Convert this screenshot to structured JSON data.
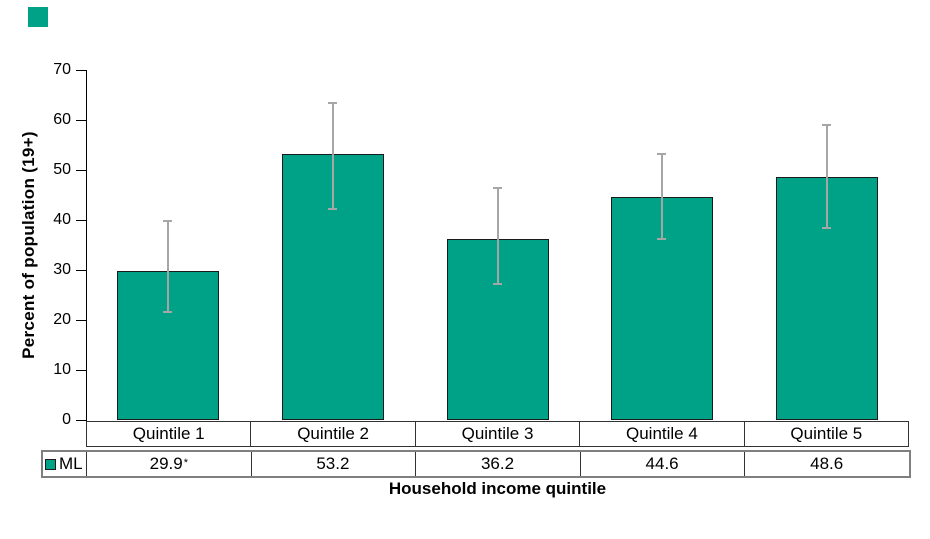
{
  "chart_data": {
    "type": "bar",
    "title": "",
    "categories": [
      "Quintile 1",
      "Quintile 2",
      "Quintile 3",
      "Quintile 4",
      "Quintile 5"
    ],
    "series": [
      {
        "name": "ML",
        "values": [
          29.9,
          53.2,
          36.2,
          44.6,
          48.6
        ],
        "error_low": [
          21.6,
          42.3,
          27.3,
          36.3,
          38.4
        ],
        "error_high": [
          39.8,
          63.5,
          46.4,
          53.2,
          59.1
        ],
        "flags": [
          "*",
          "",
          "",
          "",
          ""
        ]
      }
    ],
    "xlabel": "Household income quintile",
    "ylabel": "Percent of population (19+)",
    "ylim": [
      0,
      70
    ],
    "yticks": [
      0,
      10,
      20,
      30,
      40,
      50,
      60,
      70
    ],
    "grid": false,
    "legend_position": "table-row-left",
    "colors": {
      "bar_fill": "#00a287",
      "bar_border": "#1a1a1a",
      "error_bar": "#a6a6a6",
      "axis": "#000000",
      "table_inner_border": "#333333",
      "table_outer_border": "#7f7f7f"
    }
  },
  "table": {
    "legend_label": "ML",
    "values": [
      {
        "text": "29.9",
        "flag": "*"
      },
      {
        "text": "53.2",
        "flag": ""
      },
      {
        "text": "36.2",
        "flag": ""
      },
      {
        "text": "44.6",
        "flag": ""
      },
      {
        "text": "48.6",
        "flag": ""
      }
    ]
  },
  "decor": {
    "corner_chip_color": "#00a287"
  }
}
